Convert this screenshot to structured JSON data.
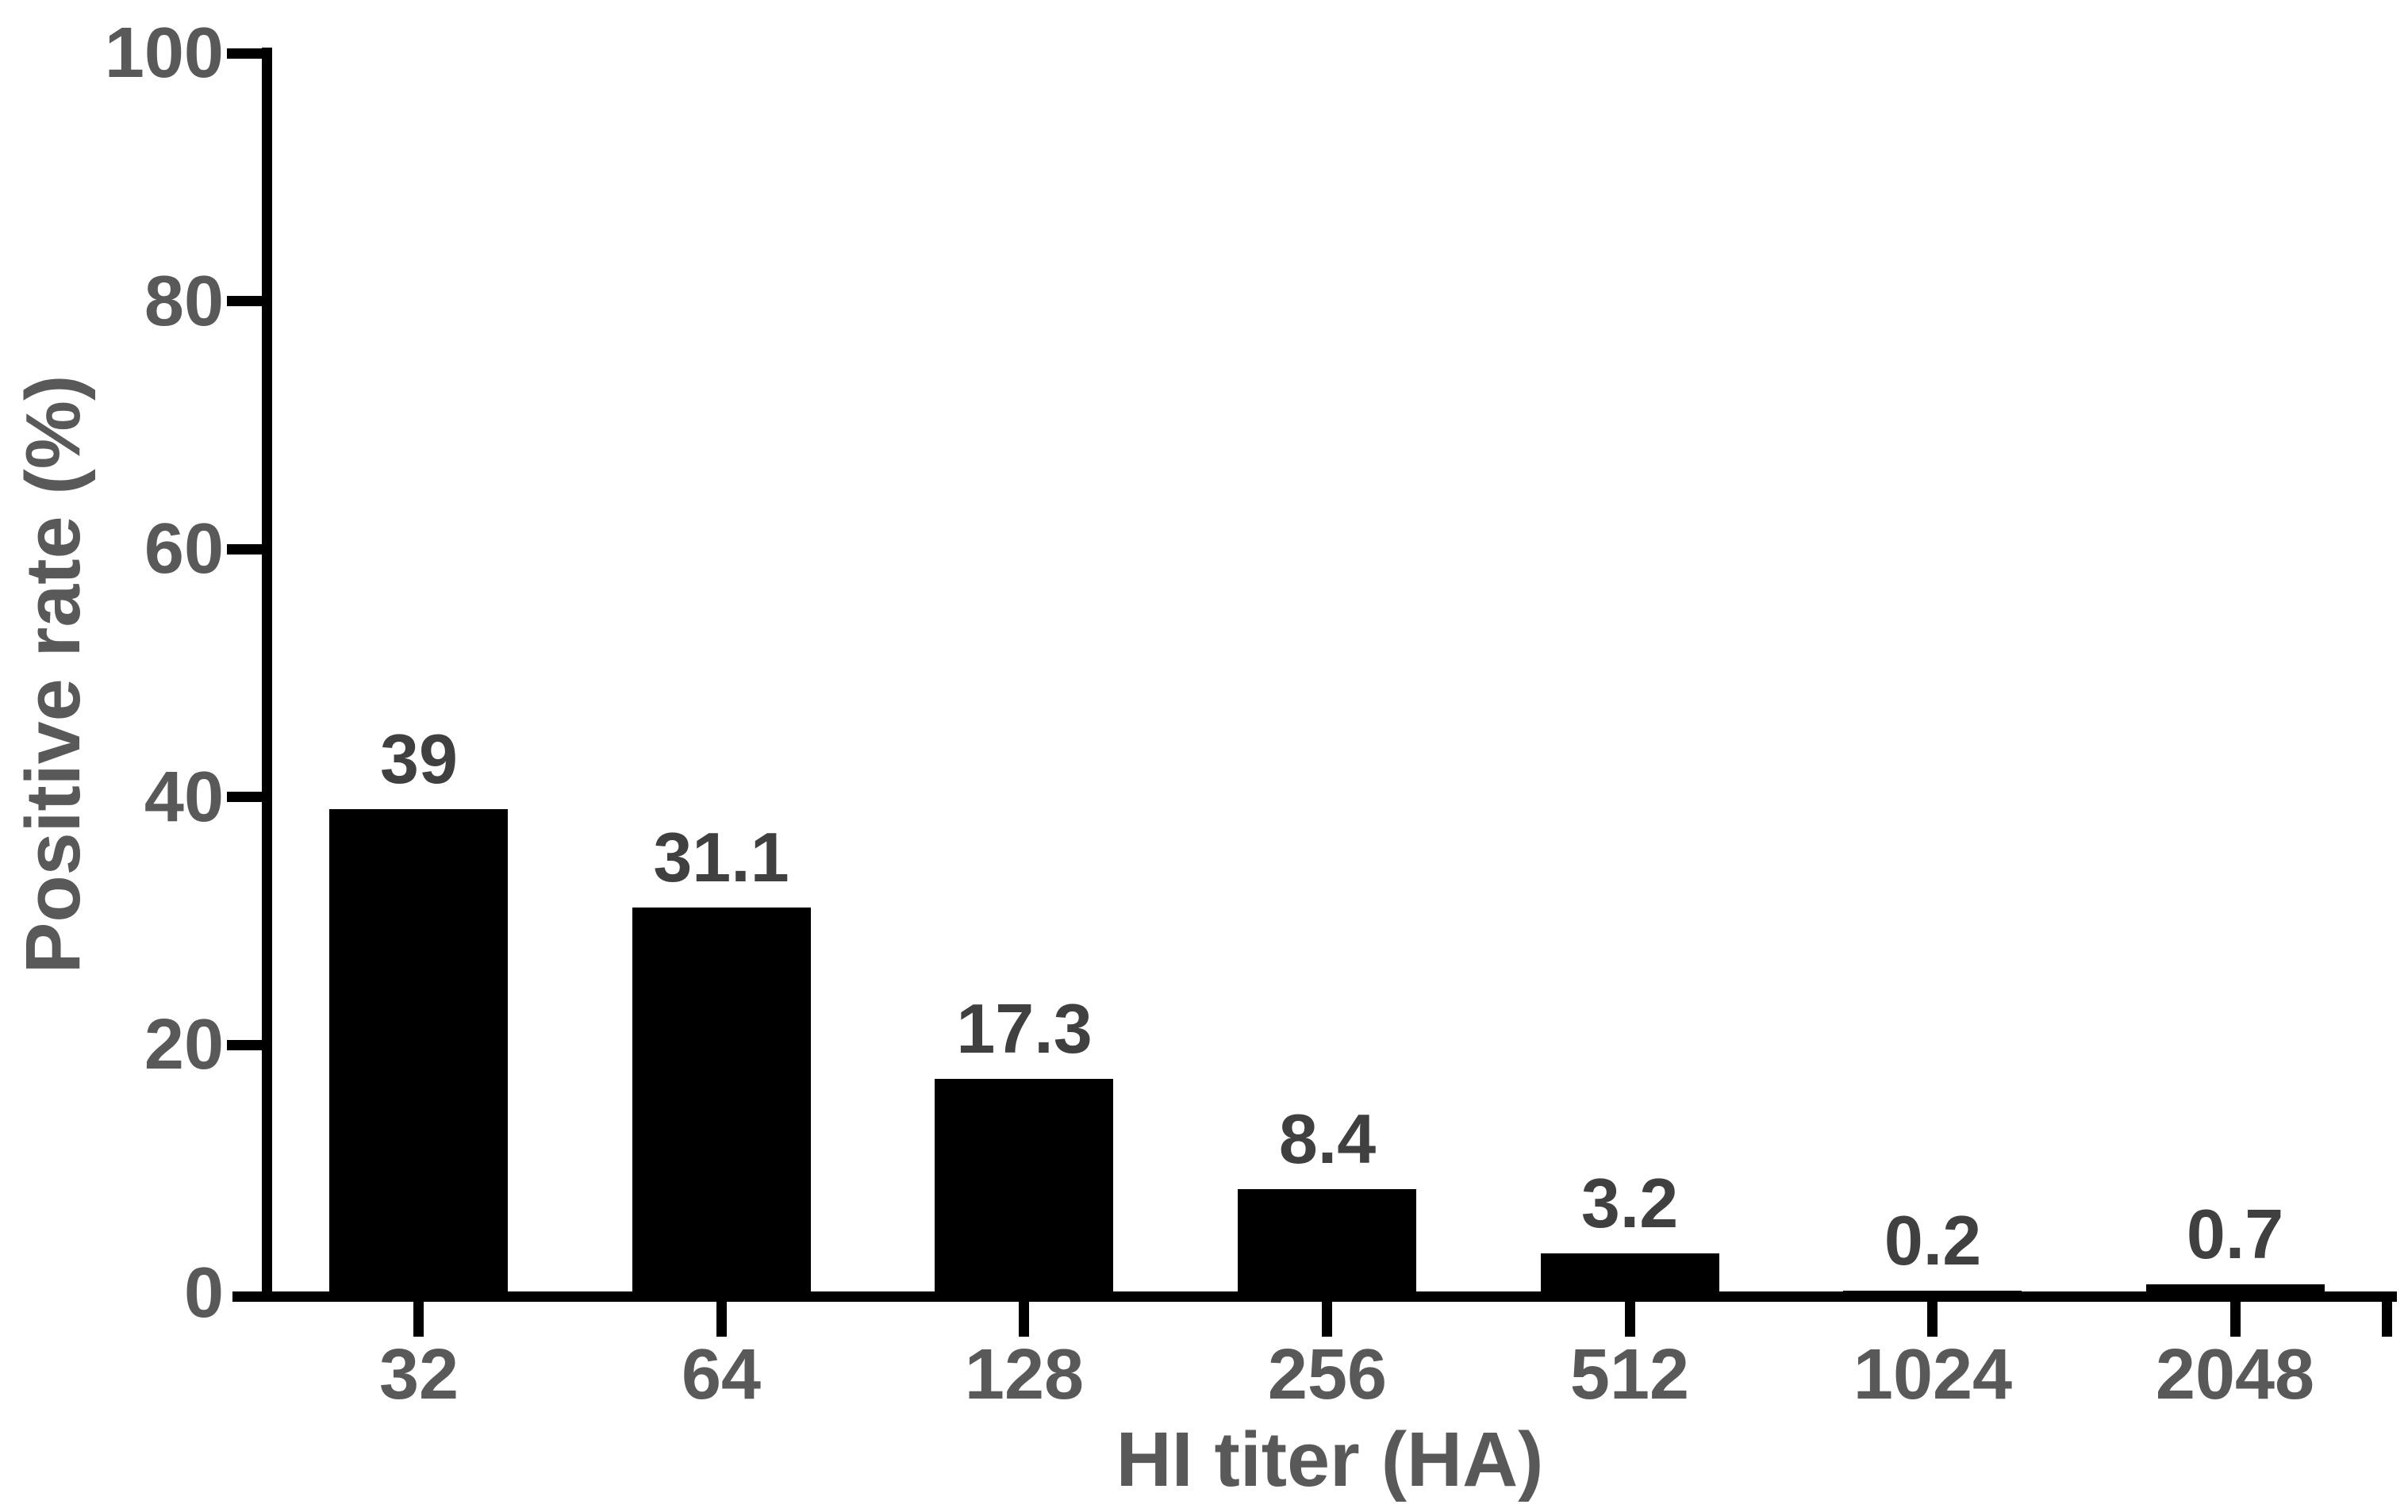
{
  "chart_data": {
    "type": "bar",
    "title": "",
    "categories": [
      "32",
      "64",
      "128",
      "256",
      "512",
      "1024",
      "2048"
    ],
    "values": [
      39,
      31.1,
      17.3,
      8.4,
      3.2,
      0.2,
      0.7
    ],
    "value_labels": [
      "39",
      "31.1",
      "17.3",
      "8.4",
      "3.2",
      "0.2",
      "0.7"
    ],
    "xlabel": "HI titer (HA)",
    "ylabel": "Positive rate (%)",
    "ylim": [
      0,
      100
    ],
    "yticks": [
      0,
      20,
      40,
      60,
      80,
      100
    ],
    "grid": false,
    "legend_position": "none",
    "bar_color": "#000000",
    "axis_color": "#000000",
    "tick_label_color": "#595959",
    "data_label_color": "#404040"
  }
}
